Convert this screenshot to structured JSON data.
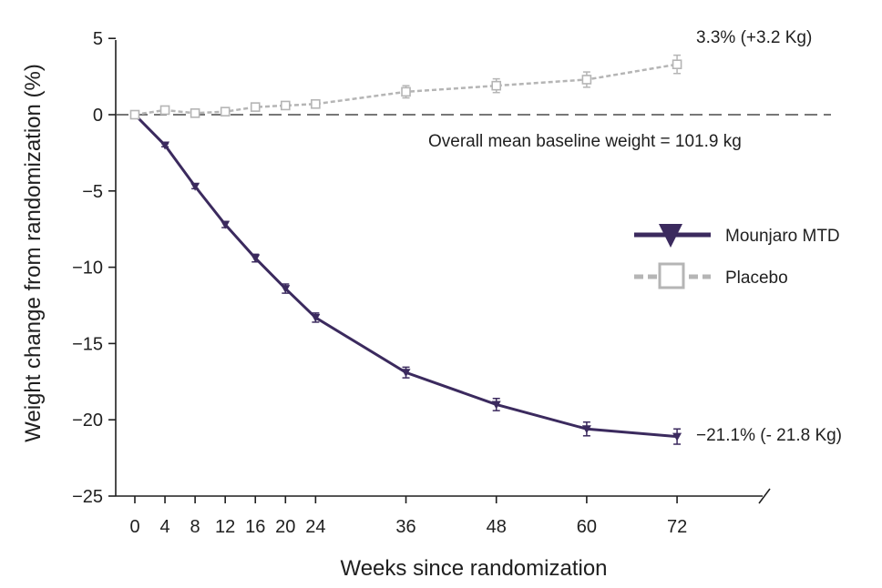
{
  "chart_data": {
    "type": "line",
    "title": "",
    "xlabel": "Weeks since randomization",
    "ylabel": "Weight change from randomization (%)",
    "x": [
      0,
      4,
      8,
      12,
      16,
      20,
      24,
      36,
      48,
      60,
      72
    ],
    "xticks": [
      "0",
      "4",
      "8",
      "12",
      "16",
      "20",
      "24",
      "36",
      "48",
      "60",
      "72"
    ],
    "ylim": [
      -25,
      5
    ],
    "yticks": [
      "5",
      "0",
      "−5",
      "−10",
      "−15",
      "−20",
      "−25"
    ],
    "ytick_values": [
      5,
      0,
      -5,
      -10,
      -15,
      -20,
      -25
    ],
    "grid": false,
    "legend_position": "right",
    "series": [
      {
        "name": "Mounjaro MTD",
        "color": "#3b2a5e",
        "marker": "triangle-down",
        "values": [
          0,
          -2.0,
          -4.7,
          -7.2,
          -9.4,
          -11.4,
          -13.3,
          -16.9,
          -19.0,
          -20.6,
          -21.1
        ],
        "error": [
          0,
          0.1,
          0.15,
          0.2,
          0.25,
          0.3,
          0.3,
          0.35,
          0.4,
          0.45,
          0.5
        ]
      },
      {
        "name": "Placebo",
        "color": "#b5b5b5",
        "marker": "square-open",
        "values": [
          0,
          0.3,
          0.1,
          0.2,
          0.5,
          0.6,
          0.7,
          1.5,
          1.9,
          2.3,
          3.3
        ],
        "error": [
          0,
          0.15,
          0.15,
          0.15,
          0.2,
          0.25,
          0.25,
          0.4,
          0.45,
          0.5,
          0.6
        ]
      }
    ],
    "annotations": {
      "placebo_end": "3.3% (+3.2 Kg)",
      "mounjaro_end": "−21.1% (- 21.8 Kg)",
      "baseline": "Overall mean baseline weight = 101.9 kg"
    }
  }
}
